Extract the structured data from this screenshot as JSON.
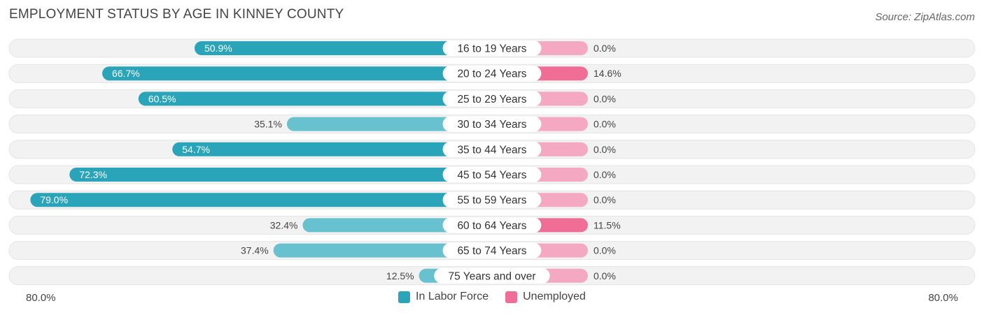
{
  "header": {
    "title": "EMPLOYMENT STATUS BY AGE IN KINNEY COUNTY",
    "source": "Source: ZipAtlas.com"
  },
  "axis": {
    "left_label": "80.0%",
    "right_label": "80.0%"
  },
  "legend": {
    "labor_label": "In Labor Force",
    "unemployed_label": "Unemployed"
  },
  "colors": {
    "labor_dark": "#2aa4b8",
    "labor_light": "#68c1cf",
    "unemployed_dark": "#f06e96",
    "unemployed_light": "#f5a8c1",
    "track": "#f2f2f2"
  },
  "chart_data": {
    "type": "bar",
    "orientation": "horizontal-diverging",
    "categories": [
      "16 to 19 Years",
      "20 to 24 Years",
      "25 to 29 Years",
      "30 to 34 Years",
      "35 to 44 Years",
      "45 to 54 Years",
      "55 to 59 Years",
      "60 to 64 Years",
      "65 to 74 Years",
      "75 Years and over"
    ],
    "series": [
      {
        "name": "In Labor Force",
        "values": [
          50.9,
          66.7,
          60.5,
          35.1,
          54.7,
          72.3,
          79.0,
          32.4,
          37.4,
          12.5
        ]
      },
      {
        "name": "Unemployed",
        "values": [
          0.0,
          14.6,
          0.0,
          0.0,
          0.0,
          0.0,
          0.0,
          11.5,
          0.0,
          0.0
        ]
      }
    ],
    "data_labels_labor": [
      "50.9%",
      "66.7%",
      "60.5%",
      "35.1%",
      "54.7%",
      "72.3%",
      "79.0%",
      "32.4%",
      "37.4%",
      "12.5%"
    ],
    "data_labels_unemployed": [
      "0.0%",
      "14.6%",
      "0.0%",
      "0.0%",
      "0.0%",
      "0.0%",
      "0.0%",
      "11.5%",
      "0.0%",
      "0.0%"
    ],
    "xlim": [
      -80,
      80
    ],
    "legend_position": "bottom-center"
  }
}
